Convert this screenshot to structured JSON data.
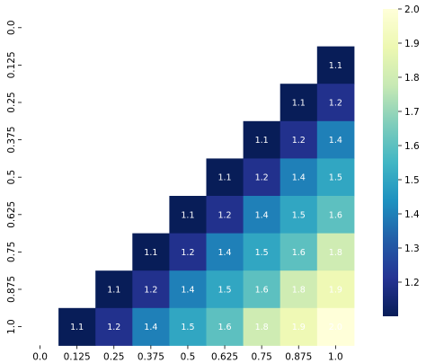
{
  "chart_data": {
    "type": "heatmap",
    "title": "",
    "xlabel": "",
    "ylabel": "",
    "x_ticks": [
      "0.0",
      "0.125",
      "0.25",
      "0.375",
      "0.5",
      "0.625",
      "0.75",
      "0.875",
      "1.0"
    ],
    "y_ticks": [
      "0.0",
      "0.125",
      "0.25",
      "0.375",
      "0.5",
      "0.625",
      "0.75",
      "0.875",
      "1.0"
    ],
    "matrix": [
      [
        null,
        null,
        null,
        null,
        null,
        null,
        null,
        null,
        null
      ],
      [
        null,
        null,
        null,
        null,
        null,
        null,
        null,
        null,
        1.1
      ],
      [
        null,
        null,
        null,
        null,
        null,
        null,
        null,
        1.1,
        1.2
      ],
      [
        null,
        null,
        null,
        null,
        null,
        null,
        1.1,
        1.2,
        1.4
      ],
      [
        null,
        null,
        null,
        null,
        null,
        1.1,
        1.2,
        1.4,
        1.5
      ],
      [
        null,
        null,
        null,
        null,
        1.1,
        1.2,
        1.4,
        1.5,
        1.6
      ],
      [
        null,
        null,
        null,
        1.1,
        1.2,
        1.4,
        1.5,
        1.6,
        1.8
      ],
      [
        null,
        null,
        1.1,
        1.2,
        1.4,
        1.5,
        1.6,
        1.8,
        1.9
      ],
      [
        null,
        1.1,
        1.2,
        1.4,
        1.5,
        1.6,
        1.8,
        1.9,
        2.0
      ]
    ],
    "cell_labels": [
      [
        null,
        null,
        null,
        null,
        null,
        null,
        null,
        null,
        null
      ],
      [
        null,
        null,
        null,
        null,
        null,
        null,
        null,
        null,
        "1.1"
      ],
      [
        null,
        null,
        null,
        null,
        null,
        null,
        null,
        "1.1",
        "1.2"
      ],
      [
        null,
        null,
        null,
        null,
        null,
        null,
        "1.1",
        "1.2",
        "1.4"
      ],
      [
        null,
        null,
        null,
        null,
        null,
        "1.1",
        "1.2",
        "1.4",
        "1.5"
      ],
      [
        null,
        null,
        null,
        null,
        "1.1",
        "1.2",
        "1.4",
        "1.5",
        "1.6"
      ],
      [
        null,
        null,
        null,
        "1.1",
        "1.2",
        "1.4",
        "1.5",
        "1.6",
        "1.8"
      ],
      [
        null,
        null,
        "1.1",
        "1.2",
        "1.4",
        "1.5",
        "1.6",
        "1.8",
        "1.9"
      ],
      [
        null,
        "1.1",
        "1.2",
        "1.4",
        "1.5",
        "1.6",
        "1.8",
        "1.9",
        "2.0"
      ]
    ],
    "colorbar": {
      "range": [
        1.1,
        2.0
      ],
      "ticks": [
        "1.2",
        "1.3",
        "1.4",
        "1.5",
        "1.6",
        "1.7",
        "1.8",
        "1.9",
        "2.0"
      ],
      "colormap": "YlGnBu_r"
    },
    "grid": false,
    "legend": "colorbar-right"
  },
  "colors": {
    "colormap_stops": [
      "#081d58",
      "#253494",
      "#225ea8",
      "#1d91c0",
      "#41b6c4",
      "#7fcdbb",
      "#c7e9b4",
      "#edf8b1",
      "#ffffd9"
    ],
    "tick_color": "#000000",
    "cell_text_color": "#ffffff"
  }
}
